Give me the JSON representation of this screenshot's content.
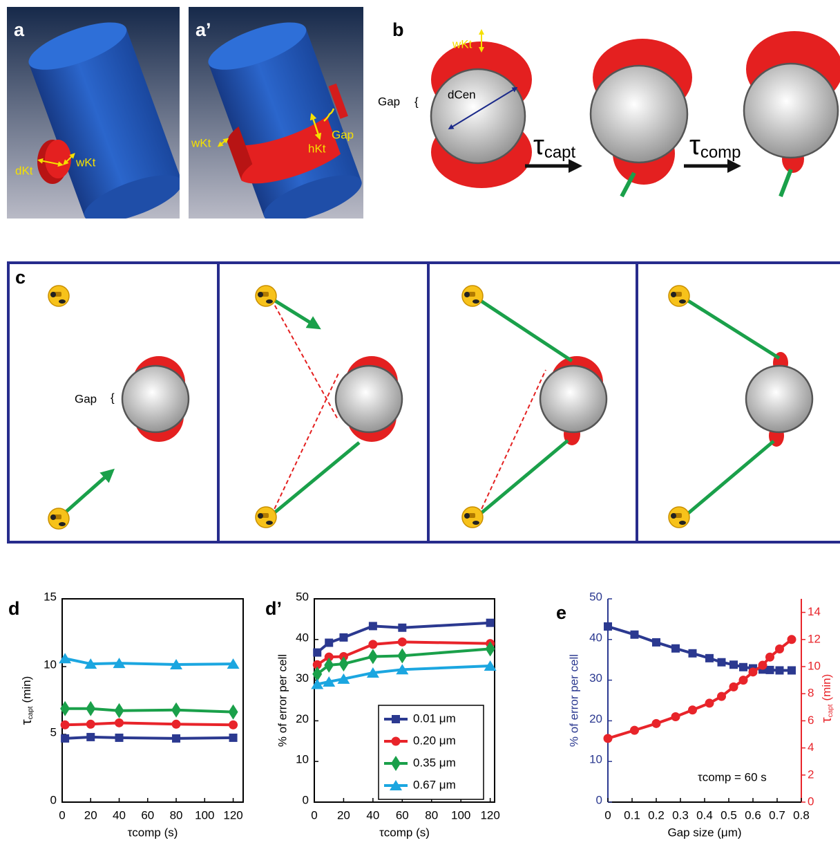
{
  "panels": {
    "a": {
      "label": "a",
      "dKt": "dKt",
      "wKt": "wKt"
    },
    "a2": {
      "label": "a’",
      "wKt": "wKt",
      "hKt": "hKt",
      "gap": "Gap"
    },
    "b": {
      "label": "b",
      "wKt": "wKt",
      "dCen": "dCen",
      "gap": "Gap",
      "brace": "{",
      "capt": {
        "symbol": "τ",
        "sub": "capt"
      },
      "comp": {
        "symbol": "τ",
        "sub": "comp"
      }
    },
    "c": {
      "label": "c",
      "gap": "Gap",
      "brace": "{"
    }
  },
  "chart_data": [
    {
      "type": "line",
      "panel_label": "d",
      "box": true,
      "xlabel": "τcomp (s)",
      "ylabel": {
        "symbol": "τ",
        "sub": "capt",
        "unit": "(min)"
      },
      "x": [
        2,
        20,
        40,
        80,
        120
      ],
      "xlim": [
        0,
        127
      ],
      "xticks": [
        0,
        20,
        40,
        60,
        80,
        100,
        120
      ],
      "ylim": [
        0,
        15
      ],
      "yticks": [
        0,
        5,
        10,
        15
      ],
      "series": [
        {
          "color": "#2b3990",
          "marker": "square",
          "values": [
            4.7,
            4.8,
            4.75,
            4.7,
            4.75
          ]
        },
        {
          "color": "#e8242a",
          "marker": "circle",
          "values": [
            5.7,
            5.75,
            5.85,
            5.75,
            5.7
          ]
        },
        {
          "color": "#1aa04a",
          "marker": "diamond",
          "values": [
            6.9,
            6.9,
            6.75,
            6.8,
            6.65
          ]
        },
        {
          "color": "#1ba6e0",
          "marker": "triangle",
          "values": [
            10.6,
            10.2,
            10.25,
            10.15,
            10.2
          ]
        }
      ]
    },
    {
      "type": "line",
      "panel_label": "d’",
      "box": true,
      "legend": "lower right",
      "xlabel": "τcomp (s)",
      "ylabel": "% of error per cell",
      "x": [
        2,
        10,
        20,
        40,
        60,
        120
      ],
      "xlim": [
        0,
        123
      ],
      "xticks": [
        0,
        20,
        40,
        60,
        80,
        100,
        120
      ],
      "ylim": [
        0,
        50
      ],
      "yticks": [
        0,
        10,
        20,
        30,
        40,
        50
      ],
      "series": [
        {
          "name": "0.01 μm",
          "color": "#2b3990",
          "marker": "square",
          "values": [
            36.8,
            39.2,
            40.5,
            43.3,
            42.9,
            44.1
          ]
        },
        {
          "name": "0.20 μm",
          "color": "#e8242a",
          "marker": "circle",
          "values": [
            33.8,
            35.7,
            35.8,
            38.8,
            39.4,
            39
          ]
        },
        {
          "name": "0.35 μm",
          "color": "#1aa04a",
          "marker": "diamond",
          "values": [
            31.5,
            33.7,
            34,
            35.8,
            36,
            37.7
          ]
        },
        {
          "name": "0.67 μm",
          "color": "#1ba6e0",
          "marker": "triangle",
          "values": [
            29,
            29.6,
            30.3,
            31.8,
            32.6,
            33.5
          ]
        }
      ]
    },
    {
      "type": "line",
      "panel_label": "e",
      "box": false,
      "xlabel": "Gap size (μm)",
      "ylabel": "% of error per cell",
      "y2label": {
        "symbol": "τ",
        "sub": "capt",
        "unit": "(min)"
      },
      "annotation": "τcomp = 60 s",
      "x": [
        0,
        0.11,
        0.2,
        0.28,
        0.35,
        0.42,
        0.47,
        0.52,
        0.56,
        0.6,
        0.64,
        0.67,
        0.71,
        0.76
      ],
      "xlim": [
        0,
        0.8
      ],
      "xticks": [
        0,
        0.1,
        0.2,
        0.3,
        0.4,
        0.5,
        0.6,
        0.7,
        0.8
      ],
      "ylim": [
        0,
        50
      ],
      "yticks": [
        0,
        10,
        20,
        30,
        40,
        50
      ],
      "y2lim": [
        0,
        15
      ],
      "y2ticks": [
        0,
        2,
        4,
        6,
        8,
        10,
        12,
        14
      ],
      "series": [
        {
          "color": "#2b3990",
          "marker": "square",
          "values": [
            43.2,
            41.2,
            39.3,
            37.8,
            36.6,
            35.4,
            34.4,
            33.8,
            33.2,
            32.9,
            32.6,
            32.5,
            32.4,
            32.4
          ]
        },
        {
          "color": "#e8242a",
          "marker": "circle",
          "axis": "y2",
          "values": [
            4.7,
            5.3,
            5.8,
            6.3,
            6.8,
            7.3,
            7.8,
            8.5,
            9.0,
            9.6,
            10.1,
            10.7,
            11.3,
            12.0
          ]
        }
      ]
    }
  ]
}
